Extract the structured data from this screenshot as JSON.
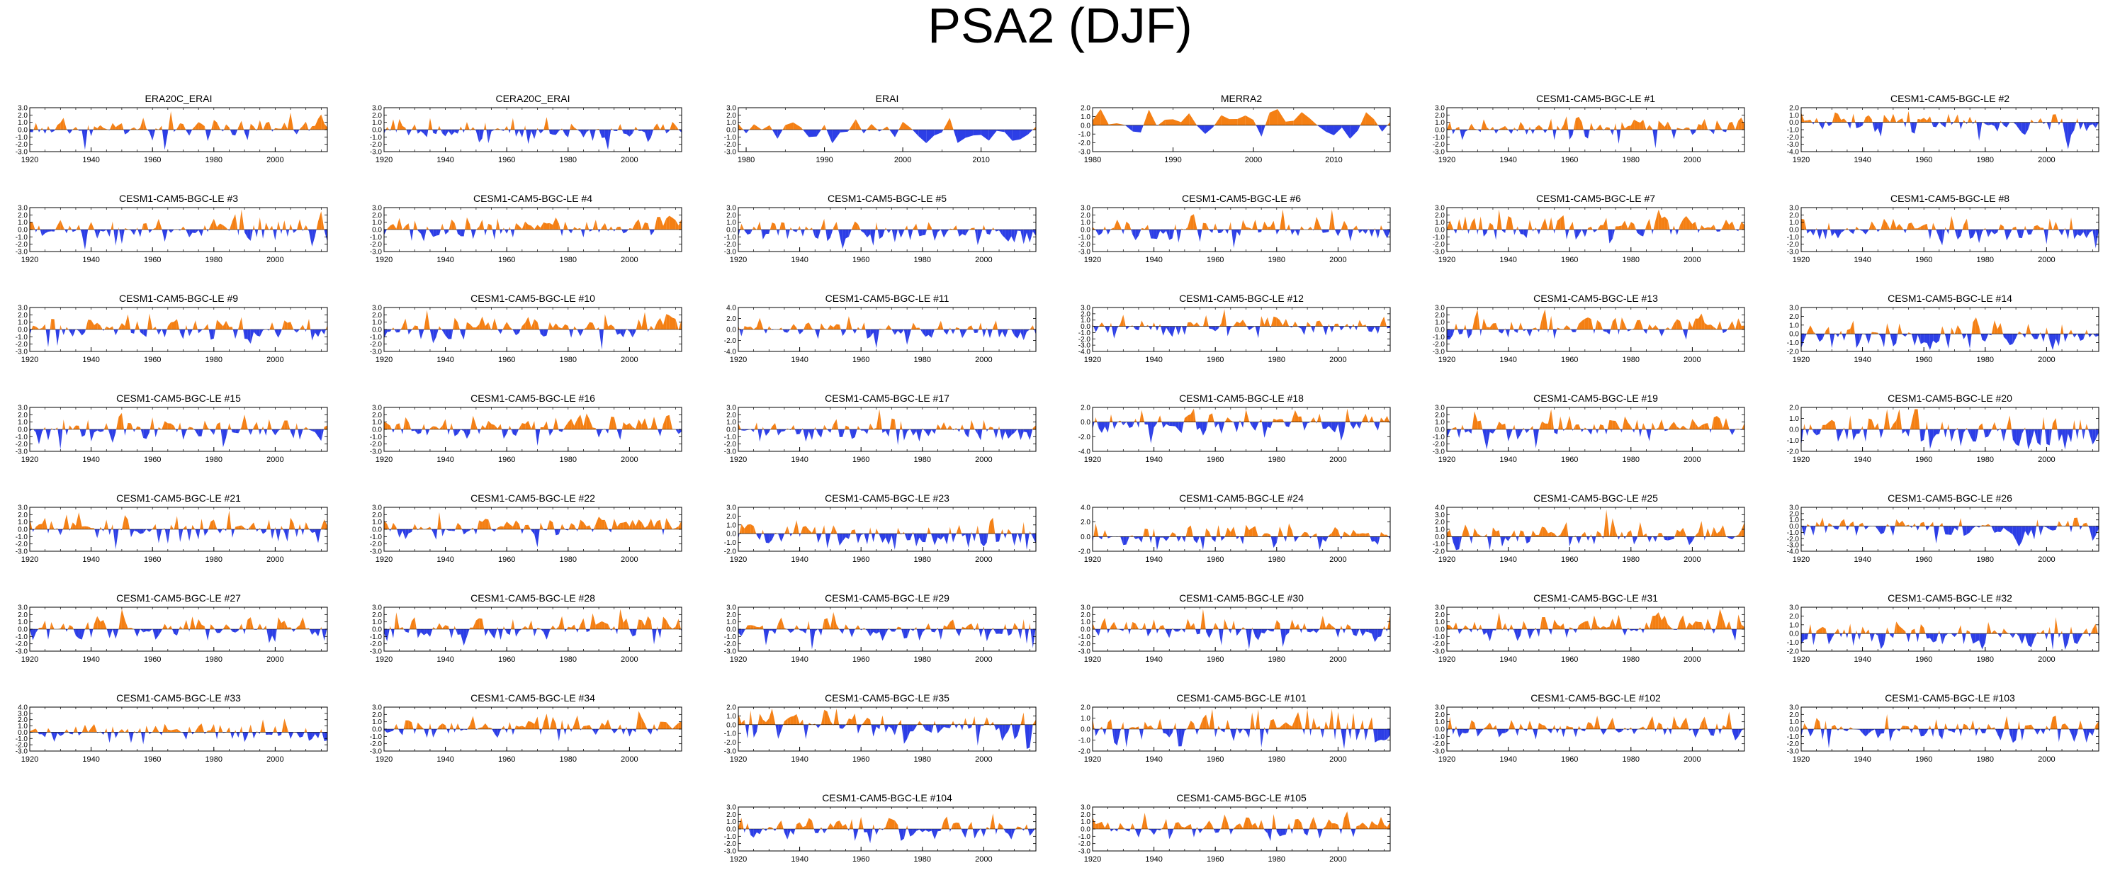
{
  "title": "PSA2 (DJF)",
  "colors": {
    "positive": "#f47f13",
    "negative": "#2c3ee6",
    "axis": "#000000"
  },
  "chart_data": [
    {
      "type": "area",
      "title": "ERA20C_ERAI",
      "x_start": 1920,
      "x_end": 2017,
      "xticks": [
        "1920",
        "1940",
        "1960",
        "1980",
        "2000"
      ],
      "yticks": [
        "3.0",
        "2.0",
        "1.0",
        "0.0",
        "-1.0",
        "-2.0",
        "-3.0"
      ],
      "ylim": [
        -3,
        3
      ],
      "seed": 11
    },
    {
      "type": "area",
      "title": "CERA20C_ERAI",
      "x_start": 1920,
      "x_end": 2017,
      "xticks": [
        "1920",
        "1940",
        "1960",
        "1980",
        "2000"
      ],
      "yticks": [
        "3.0",
        "2.0",
        "1.0",
        "0.0",
        "-1.0",
        "-2.0",
        "-3.0"
      ],
      "ylim": [
        -3,
        3
      ],
      "seed": 12
    },
    {
      "type": "area",
      "title": "ERAI",
      "x_start": 1979,
      "x_end": 2017,
      "xticks": [
        "1980",
        "1990",
        "2000",
        "2010"
      ],
      "yticks": [
        "3.0",
        "2.0",
        "1.0",
        "0.0",
        "-1.0",
        "-2.0",
        "-3.0"
      ],
      "ylim": [
        -3,
        3
      ],
      "seed": 13
    },
    {
      "type": "area",
      "title": "MERRA2",
      "x_start": 1980,
      "x_end": 2017,
      "xticks": [
        "1980",
        "1990",
        "2000",
        "2010"
      ],
      "yticks": [
        "2.0",
        "1.0",
        "0.0",
        "-1.0",
        "-2.0",
        "-3.0"
      ],
      "ylim": [
        -3,
        2
      ],
      "seed": 14
    },
    {
      "type": "area",
      "title": "CESM1-CAM5-BGC-LE #1",
      "x_start": 1920,
      "x_end": 2017,
      "xticks": [
        "1920",
        "1940",
        "1960",
        "1980",
        "2000"
      ],
      "yticks": [
        "3.0",
        "2.0",
        "1.0",
        "0.0",
        "-1.0",
        "-2.0",
        "-3.0"
      ],
      "ylim": [
        -3,
        3
      ],
      "seed": 101
    },
    {
      "type": "area",
      "title": "CESM1-CAM5-BGC-LE #2",
      "x_start": 1920,
      "x_end": 2017,
      "xticks": [
        "1920",
        "1940",
        "1960",
        "1980",
        "2000"
      ],
      "yticks": [
        "2.0",
        "1.0",
        "0.0",
        "-1.0",
        "-2.0",
        "-3.0",
        "-4.0"
      ],
      "ylim": [
        -4,
        2
      ],
      "seed": 102
    },
    {
      "type": "area",
      "title": "CESM1-CAM5-BGC-LE #3",
      "x_start": 1920,
      "x_end": 2017,
      "xticks": [
        "1920",
        "1940",
        "1960",
        "1980",
        "2000"
      ],
      "yticks": [
        "3.0",
        "2.0",
        "1.0",
        "0.0",
        "-1.0",
        "-2.0",
        "-3.0"
      ],
      "ylim": [
        -3,
        3
      ],
      "seed": 103
    },
    {
      "type": "area",
      "title": "CESM1-CAM5-BGC-LE #4",
      "x_start": 1920,
      "x_end": 2017,
      "xticks": [
        "1920",
        "1940",
        "1960",
        "1980",
        "2000"
      ],
      "yticks": [
        "3.0",
        "2.0",
        "1.0",
        "0.0",
        "-1.0",
        "-2.0",
        "-3.0"
      ],
      "ylim": [
        -3,
        3
      ],
      "seed": 104
    },
    {
      "type": "area",
      "title": "CESM1-CAM5-BGC-LE #5",
      "x_start": 1920,
      "x_end": 2017,
      "xticks": [
        "1920",
        "1940",
        "1960",
        "1980",
        "2000"
      ],
      "yticks": [
        "3.0",
        "2.0",
        "1.0",
        "0.0",
        "-1.0",
        "-2.0",
        "-3.0"
      ],
      "ylim": [
        -3,
        3
      ],
      "seed": 105
    },
    {
      "type": "area",
      "title": "CESM1-CAM5-BGC-LE #6",
      "x_start": 1920,
      "x_end": 2017,
      "xticks": [
        "1920",
        "1940",
        "1960",
        "1980",
        "2000"
      ],
      "yticks": [
        "3.0",
        "2.0",
        "1.0",
        "0.0",
        "-1.0",
        "-2.0",
        "-3.0"
      ],
      "ylim": [
        -3,
        3
      ],
      "seed": 106
    },
    {
      "type": "area",
      "title": "CESM1-CAM5-BGC-LE #7",
      "x_start": 1920,
      "x_end": 2017,
      "xticks": [
        "1920",
        "1940",
        "1960",
        "1980",
        "2000"
      ],
      "yticks": [
        "3.0",
        "2.0",
        "1.0",
        "0.0",
        "-1.0",
        "-2.0",
        "-3.0"
      ],
      "ylim": [
        -3,
        3
      ],
      "seed": 107
    },
    {
      "type": "area",
      "title": "CESM1-CAM5-BGC-LE #8",
      "x_start": 1920,
      "x_end": 2017,
      "xticks": [
        "1920",
        "1940",
        "1960",
        "1980",
        "2000"
      ],
      "yticks": [
        "3.0",
        "2.0",
        "1.0",
        "0.0",
        "-1.0",
        "-2.0",
        "-3.0"
      ],
      "ylim": [
        -3,
        3
      ],
      "seed": 108
    },
    {
      "type": "area",
      "title": "CESM1-CAM5-BGC-LE #9",
      "x_start": 1920,
      "x_end": 2017,
      "xticks": [
        "1920",
        "1940",
        "1960",
        "1980",
        "2000"
      ],
      "yticks": [
        "3.0",
        "2.0",
        "1.0",
        "0.0",
        "-1.0",
        "-2.0",
        "-3.0"
      ],
      "ylim": [
        -3,
        3
      ],
      "seed": 109
    },
    {
      "type": "area",
      "title": "CESM1-CAM5-BGC-LE #10",
      "x_start": 1920,
      "x_end": 2017,
      "xticks": [
        "1920",
        "1940",
        "1960",
        "1980",
        "2000"
      ],
      "yticks": [
        "3.0",
        "2.0",
        "1.0",
        "0.0",
        "-1.0",
        "-2.0",
        "-3.0"
      ],
      "ylim": [
        -3,
        3
      ],
      "seed": 110
    },
    {
      "type": "area",
      "title": "CESM1-CAM5-BGC-LE #11",
      "x_start": 1920,
      "x_end": 2017,
      "xticks": [
        "1920",
        "1940",
        "1960",
        "1980",
        "2000"
      ],
      "yticks": [
        "4.0",
        "2.0",
        "0.0",
        "-2.0",
        "-4.0"
      ],
      "ylim": [
        -4,
        4
      ],
      "seed": 111
    },
    {
      "type": "area",
      "title": "CESM1-CAM5-BGC-LE #12",
      "x_start": 1920,
      "x_end": 2017,
      "xticks": [
        "1920",
        "1940",
        "1960",
        "1980",
        "2000"
      ],
      "yticks": [
        "3.0",
        "2.0",
        "1.0",
        "0.0",
        "-1.0",
        "-2.0",
        "-3.0",
        "-4.0"
      ],
      "ylim": [
        -4,
        3
      ],
      "seed": 112
    },
    {
      "type": "area",
      "title": "CESM1-CAM5-BGC-LE #13",
      "x_start": 1920,
      "x_end": 2017,
      "xticks": [
        "1920",
        "1940",
        "1960",
        "1980",
        "2000"
      ],
      "yticks": [
        "3.0",
        "2.0",
        "1.0",
        "0.0",
        "-1.0",
        "-2.0",
        "-3.0"
      ],
      "ylim": [
        -3,
        3
      ],
      "seed": 113
    },
    {
      "type": "area",
      "title": "CESM1-CAM5-BGC-LE #14",
      "x_start": 1920,
      "x_end": 2017,
      "xticks": [
        "1920",
        "1940",
        "1960",
        "1980",
        "2000"
      ],
      "yticks": [
        "3.0",
        "2.0",
        "1.0",
        "0.0",
        "-1.0",
        "-2.0"
      ],
      "ylim": [
        -2,
        3
      ],
      "seed": 114
    },
    {
      "type": "area",
      "title": "CESM1-CAM5-BGC-LE #15",
      "x_start": 1920,
      "x_end": 2017,
      "xticks": [
        "1920",
        "1940",
        "1960",
        "1980",
        "2000"
      ],
      "yticks": [
        "3.0",
        "2.0",
        "1.0",
        "0.0",
        "-1.0",
        "-2.0",
        "-3.0"
      ],
      "ylim": [
        -3,
        3
      ],
      "seed": 115
    },
    {
      "type": "area",
      "title": "CESM1-CAM5-BGC-LE #16",
      "x_start": 1920,
      "x_end": 2017,
      "xticks": [
        "1920",
        "1940",
        "1960",
        "1980",
        "2000"
      ],
      "yticks": [
        "3.0",
        "2.0",
        "1.0",
        "0.0",
        "-1.0",
        "-2.0",
        "-3.0"
      ],
      "ylim": [
        -3,
        3
      ],
      "seed": 116
    },
    {
      "type": "area",
      "title": "CESM1-CAM5-BGC-LE #17",
      "x_start": 1920,
      "x_end": 2017,
      "xticks": [
        "1920",
        "1940",
        "1960",
        "1980",
        "2000"
      ],
      "yticks": [
        "3.0",
        "2.0",
        "1.0",
        "0.0",
        "-1.0",
        "-2.0",
        "-3.0"
      ],
      "ylim": [
        -3,
        3
      ],
      "seed": 117
    },
    {
      "type": "area",
      "title": "CESM1-CAM5-BGC-LE #18",
      "x_start": 1920,
      "x_end": 2017,
      "xticks": [
        "1920",
        "1940",
        "1960",
        "1980",
        "2000"
      ],
      "yticks": [
        "2.0",
        "0.0",
        "-2.0",
        "-4.0"
      ],
      "ylim": [
        -4,
        2
      ],
      "seed": 118
    },
    {
      "type": "area",
      "title": "CESM1-CAM5-BGC-LE #19",
      "x_start": 1920,
      "x_end": 2017,
      "xticks": [
        "1920",
        "1940",
        "1960",
        "1980",
        "2000"
      ],
      "yticks": [
        "3.0",
        "2.0",
        "1.0",
        "0.0",
        "-1.0",
        "-2.0",
        "-3.0"
      ],
      "ylim": [
        -3,
        3
      ],
      "seed": 119
    },
    {
      "type": "area",
      "title": "CESM1-CAM5-BGC-LE #20",
      "x_start": 1920,
      "x_end": 2017,
      "xticks": [
        "1920",
        "1940",
        "1960",
        "1980",
        "2000"
      ],
      "yticks": [
        "2.0",
        "1.0",
        "0.0",
        "-1.0",
        "-2.0"
      ],
      "ylim": [
        -2,
        2
      ],
      "seed": 120
    },
    {
      "type": "area",
      "title": "CESM1-CAM5-BGC-LE #21",
      "x_start": 1920,
      "x_end": 2017,
      "xticks": [
        "1920",
        "1940",
        "1960",
        "1980",
        "2000"
      ],
      "yticks": [
        "3.0",
        "2.0",
        "1.0",
        "0.0",
        "-1.0",
        "-2.0",
        "-3.0"
      ],
      "ylim": [
        -3,
        3
      ],
      "seed": 121
    },
    {
      "type": "area",
      "title": "CESM1-CAM5-BGC-LE #22",
      "x_start": 1920,
      "x_end": 2017,
      "xticks": [
        "1920",
        "1940",
        "1960",
        "1980",
        "2000"
      ],
      "yticks": [
        "3.0",
        "2.0",
        "1.0",
        "0.0",
        "-1.0",
        "-2.0",
        "-3.0"
      ],
      "ylim": [
        -3,
        3
      ],
      "seed": 122
    },
    {
      "type": "area",
      "title": "CESM1-CAM5-BGC-LE #23",
      "x_start": 1920,
      "x_end": 2017,
      "xticks": [
        "1920",
        "1940",
        "1960",
        "1980",
        "2000"
      ],
      "yticks": [
        "3.0",
        "2.0",
        "1.0",
        "0.0",
        "-1.0",
        "-2.0"
      ],
      "ylim": [
        -2,
        3
      ],
      "seed": 123
    },
    {
      "type": "area",
      "title": "CESM1-CAM5-BGC-LE #24",
      "x_start": 1920,
      "x_end": 2017,
      "xticks": [
        "1920",
        "1940",
        "1960",
        "1980",
        "2000"
      ],
      "yticks": [
        "4.0",
        "2.0",
        "0.0",
        "-2.0"
      ],
      "ylim": [
        -2,
        4
      ],
      "seed": 124
    },
    {
      "type": "area",
      "title": "CESM1-CAM5-BGC-LE #25",
      "x_start": 1920,
      "x_end": 2017,
      "xticks": [
        "1920",
        "1940",
        "1960",
        "1980",
        "2000"
      ],
      "yticks": [
        "4.0",
        "3.0",
        "2.0",
        "1.0",
        "0.0",
        "-1.0",
        "-2.0"
      ],
      "ylim": [
        -2,
        4
      ],
      "seed": 125
    },
    {
      "type": "area",
      "title": "CESM1-CAM5-BGC-LE #26",
      "x_start": 1920,
      "x_end": 2017,
      "xticks": [
        "1920",
        "1940",
        "1960",
        "1980",
        "2000"
      ],
      "yticks": [
        "3.0",
        "2.0",
        "1.0",
        "0.0",
        "-1.0",
        "-2.0",
        "-3.0",
        "-4.0"
      ],
      "ylim": [
        -4,
        3
      ],
      "seed": 126
    },
    {
      "type": "area",
      "title": "CESM1-CAM5-BGC-LE #27",
      "x_start": 1920,
      "x_end": 2017,
      "xticks": [
        "1920",
        "1940",
        "1960",
        "1980",
        "2000"
      ],
      "yticks": [
        "3.0",
        "2.0",
        "1.0",
        "0.0",
        "-1.0",
        "-2.0",
        "-3.0"
      ],
      "ylim": [
        -3,
        3
      ],
      "seed": 127
    },
    {
      "type": "area",
      "title": "CESM1-CAM5-BGC-LE #28",
      "x_start": 1920,
      "x_end": 2017,
      "xticks": [
        "1920",
        "1940",
        "1960",
        "1980",
        "2000"
      ],
      "yticks": [
        "3.0",
        "2.0",
        "1.0",
        "0.0",
        "-1.0",
        "-2.0",
        "-3.0"
      ],
      "ylim": [
        -3,
        3
      ],
      "seed": 128
    },
    {
      "type": "area",
      "title": "CESM1-CAM5-BGC-LE #29",
      "x_start": 1920,
      "x_end": 2017,
      "xticks": [
        "1920",
        "1940",
        "1960",
        "1980",
        "2000"
      ],
      "yticks": [
        "3.0",
        "2.0",
        "1.0",
        "0.0",
        "-1.0",
        "-2.0",
        "-3.0"
      ],
      "ylim": [
        -3,
        3
      ],
      "seed": 129
    },
    {
      "type": "area",
      "title": "CESM1-CAM5-BGC-LE #30",
      "x_start": 1920,
      "x_end": 2017,
      "xticks": [
        "1920",
        "1940",
        "1960",
        "1980",
        "2000"
      ],
      "yticks": [
        "3.0",
        "2.0",
        "1.0",
        "0.0",
        "-1.0",
        "-2.0",
        "-3.0"
      ],
      "ylim": [
        -3,
        3
      ],
      "seed": 130
    },
    {
      "type": "area",
      "title": "CESM1-CAM5-BGC-LE #31",
      "x_start": 1920,
      "x_end": 2017,
      "xticks": [
        "1920",
        "1940",
        "1960",
        "1980",
        "2000"
      ],
      "yticks": [
        "3.0",
        "2.0",
        "1.0",
        "0.0",
        "-1.0",
        "-2.0",
        "-3.0"
      ],
      "ylim": [
        -3,
        3
      ],
      "seed": 131
    },
    {
      "type": "area",
      "title": "CESM1-CAM5-BGC-LE #32",
      "x_start": 1920,
      "x_end": 2017,
      "xticks": [
        "1920",
        "1940",
        "1960",
        "1980",
        "2000"
      ],
      "yticks": [
        "3.0",
        "2.0",
        "1.0",
        "0.0",
        "-1.0",
        "-2.0"
      ],
      "ylim": [
        -2,
        3
      ],
      "seed": 132
    },
    {
      "type": "area",
      "title": "CESM1-CAM5-BGC-LE #33",
      "x_start": 1920,
      "x_end": 2017,
      "xticks": [
        "1920",
        "1940",
        "1960",
        "1980",
        "2000"
      ],
      "yticks": [
        "4.0",
        "3.0",
        "2.0",
        "1.0",
        "0.0",
        "-1.0",
        "-2.0",
        "-3.0"
      ],
      "ylim": [
        -3,
        4
      ],
      "seed": 133
    },
    {
      "type": "area",
      "title": "CESM1-CAM5-BGC-LE #34",
      "x_start": 1920,
      "x_end": 2017,
      "xticks": [
        "1920",
        "1940",
        "1960",
        "1980",
        "2000"
      ],
      "yticks": [
        "3.0",
        "2.0",
        "1.0",
        "0.0",
        "-1.0",
        "-2.0",
        "-3.0"
      ],
      "ylim": [
        -3,
        3
      ],
      "seed": 134
    },
    {
      "type": "area",
      "title": "CESM1-CAM5-BGC-LE #35",
      "x_start": 1920,
      "x_end": 2017,
      "xticks": [
        "1920",
        "1940",
        "1960",
        "1980",
        "2000"
      ],
      "yticks": [
        "2.0",
        "1.0",
        "0.0",
        "-1.0",
        "-2.0",
        "-3.0"
      ],
      "ylim": [
        -3,
        2
      ],
      "seed": 135
    },
    {
      "type": "area",
      "title": "CESM1-CAM5-BGC-LE #101",
      "x_start": 1920,
      "x_end": 2017,
      "xticks": [
        "1920",
        "1940",
        "1960",
        "1980",
        "2000"
      ],
      "yticks": [
        "2.0",
        "1.0",
        "0.0",
        "-1.0",
        "-2.0"
      ],
      "ylim": [
        -2,
        2
      ],
      "seed": 136
    },
    {
      "type": "area",
      "title": "CESM1-CAM5-BGC-LE #102",
      "x_start": 1920,
      "x_end": 2017,
      "xticks": [
        "1920",
        "1940",
        "1960",
        "1980",
        "2000"
      ],
      "yticks": [
        "3.0",
        "2.0",
        "1.0",
        "0.0",
        "-1.0",
        "-2.0",
        "-3.0"
      ],
      "ylim": [
        -3,
        3
      ],
      "seed": 137
    },
    {
      "type": "area",
      "title": "CESM1-CAM5-BGC-LE #103",
      "x_start": 1920,
      "x_end": 2017,
      "xticks": [
        "1920",
        "1940",
        "1960",
        "1980",
        "2000"
      ],
      "yticks": [
        "3.0",
        "2.0",
        "1.0",
        "0.0",
        "-1.0",
        "-2.0",
        "-3.0"
      ],
      "ylim": [
        -3,
        3
      ],
      "seed": 138
    },
    {
      "type": "area",
      "title": "CESM1-CAM5-BGC-LE #104",
      "x_start": 1920,
      "x_end": 2017,
      "xticks": [
        "1920",
        "1940",
        "1960",
        "1980",
        "2000"
      ],
      "yticks": [
        "3.0",
        "2.0",
        "1.0",
        "0.0",
        "-1.0",
        "-2.0",
        "-3.0"
      ],
      "ylim": [
        -3,
        3
      ],
      "seed": 139
    },
    {
      "type": "area",
      "title": "CESM1-CAM5-BGC-LE #105",
      "x_start": 1920,
      "x_end": 2017,
      "xticks": [
        "1920",
        "1940",
        "1960",
        "1980",
        "2000"
      ],
      "yticks": [
        "3.0",
        "2.0",
        "1.0",
        "0.0",
        "-1.0",
        "-2.0",
        "-3.0"
      ],
      "ylim": [
        -3,
        3
      ],
      "seed": 140
    }
  ]
}
